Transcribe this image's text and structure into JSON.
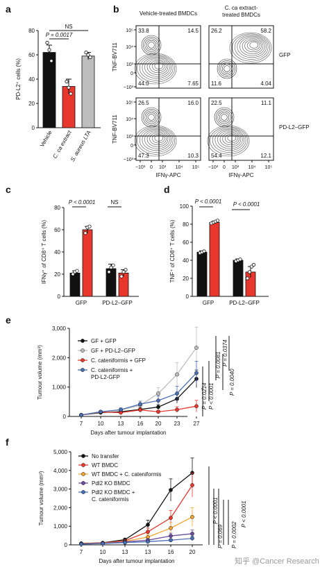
{
  "colors": {
    "black": "#111111",
    "red": "#e8372c",
    "grey": "#bdbdbd",
    "blue": "#4a6fb5",
    "orange": "#f2a431",
    "purple": "#6a4b9e",
    "dark": "#222222"
  },
  "watermark": "知乎 @Cancer Research",
  "chart_data": [
    {
      "panel": "a",
      "type": "bar",
      "ylabel": "PD-L2⁺ cells (%)",
      "ylim": [
        0,
        80
      ],
      "yticks": [
        "0",
        "20",
        "40",
        "60",
        "80"
      ],
      "categories": [
        "Vehicle",
        "C. ca extract",
        "S. aureus LTA"
      ],
      "values": [
        62,
        34,
        59
      ],
      "errors": [
        6,
        6,
        3
      ],
      "points": [
        [
          70,
          64,
          55
        ],
        [
          38,
          33,
          28
        ],
        [
          62,
          60,
          58
        ]
      ],
      "annotations": {
        "stat1": "P = 0.0017",
        "stat2": "NS"
      }
    },
    {
      "panel": "b",
      "type": "scatter",
      "col_titles": [
        "Vehicle-treated BMDCs",
        "C. ca extract-\ntreated BMDCs"
      ],
      "row_labels": [
        "GFP",
        "PD-L2–GFP"
      ],
      "xlabel": "IFNγ-APC",
      "ylabel": "TNF-BV711",
      "ticks": [
        "−10³",
        "0",
        "10³",
        "10⁴",
        "10⁵"
      ],
      "quadrants": [
        {
          "row": 0,
          "col": 0,
          "tl": "33.8",
          "tr": "14.5",
          "bl": "44.0",
          "br": "7.65"
        },
        {
          "row": 0,
          "col": 1,
          "tl": "26.2",
          "tr": "58.2",
          "bl": "11.6",
          "br": "4.04"
        },
        {
          "row": 1,
          "col": 0,
          "tl": "26.5",
          "tr": "16.0",
          "bl": "47.3",
          "br": "10.3"
        },
        {
          "row": 1,
          "col": 1,
          "tl": "22.5",
          "tr": "11.1",
          "bl": "54.4",
          "br": "12.1"
        }
      ]
    },
    {
      "panel": "c",
      "type": "bar",
      "ylabel": "IFNγ⁺ of CD8⁺ T cells (%)",
      "ylim": [
        0,
        80
      ],
      "yticks": [
        "0",
        "20",
        "40",
        "60",
        "80"
      ],
      "categories": [
        "GFP",
        "PD-L2–GFP"
      ],
      "series": [
        {
          "color": "black",
          "values": [
            21,
            25
          ],
          "errors": [
            2,
            4
          ],
          "points": [
            [
              20,
              22,
              23
            ],
            [
              22,
              26,
              28
            ]
          ]
        },
        {
          "color": "red",
          "values": [
            60,
            21
          ],
          "errors": [
            3,
            3
          ],
          "points": [
            [
              57,
              62,
              63
            ],
            [
              18,
              22,
              24
            ]
          ]
        }
      ],
      "annotations": {
        "stat1": "P < 0.0001",
        "stat2": "NS"
      }
    },
    {
      "panel": "d",
      "type": "bar",
      "ylabel": "TNF⁺ of CD8⁺ T cells (%)",
      "ylim": [
        0,
        100
      ],
      "yticks": [
        "0",
        "20",
        "40",
        "60",
        "80",
        "100"
      ],
      "categories": [
        "GFP",
        "PD-L2–GFP"
      ],
      "series": [
        {
          "color": "black",
          "values": [
            49,
            40
          ],
          "errors": [
            1.5,
            1.5
          ],
          "points": [
            [
              48,
              49,
              50
            ],
            [
              39,
              40,
              41
            ]
          ]
        },
        {
          "color": "red",
          "values": [
            82,
            27
          ],
          "errors": [
            1.5,
            6
          ],
          "points": [
            [
              81,
              82,
              83,
              84
            ],
            [
              20,
              27,
              33,
              35
            ]
          ]
        }
      ],
      "annotations": {
        "stat1": "P < 0.0001",
        "stat2": "P < 0.0001"
      }
    },
    {
      "panel": "e",
      "type": "line",
      "xlabel": "Days after tumour implantation",
      "ylabel": "Tumour volume (mm³)",
      "ylim": [
        0,
        3000
      ],
      "yticks": [
        "0",
        "1,000",
        "2,000",
        "3,000"
      ],
      "x": [
        7,
        10,
        13,
        16,
        20,
        23,
        27
      ],
      "series": [
        {
          "name": "GF + GFP",
          "color": "black",
          "marker": "circle",
          "values": [
            50,
            130,
            160,
            240,
            320,
            600,
            1280
          ],
          "errors": [
            20,
            30,
            30,
            50,
            80,
            150,
            300
          ]
        },
        {
          "name": "GF + PD-L2–GFP",
          "color": "grey",
          "marker": "circle",
          "values": [
            50,
            150,
            220,
            380,
            780,
            1430,
            2340
          ],
          "errors": [
            20,
            40,
            50,
            80,
            200,
            400,
            700
          ]
        },
        {
          "name": "C. cateniformis + GFP",
          "color": "red",
          "marker": "circle",
          "values": [
            50,
            150,
            130,
            220,
            160,
            230,
            350
          ],
          "errors": [
            20,
            40,
            40,
            60,
            50,
            100,
            200
          ]
        },
        {
          "name": "C. cateniformis +\nPD-L2-GFP",
          "color": "blue",
          "marker": "circle",
          "values": [
            50,
            160,
            230,
            420,
            540,
            780,
            1480
          ],
          "errors": [
            20,
            40,
            60,
            100,
            150,
            250,
            400
          ]
        }
      ],
      "pvalues": [
        "P = 0.0214",
        "P < 0.0001",
        "P = 0.0081",
        "P = 0.0040",
        "P = 0.0374"
      ]
    },
    {
      "panel": "f",
      "type": "line",
      "xlabel": "Days after tumour implantation",
      "ylabel": "Tumour volume (mm³)",
      "ylim": [
        0,
        5000
      ],
      "yticks": [
        "0",
        "1,000",
        "2,000",
        "3,000",
        "4,000",
        "5,000"
      ],
      "xticks": [
        "7",
        "10",
        "13",
        "13",
        "16",
        "20"
      ],
      "series": [
        {
          "name": "No transfer",
          "color": "black",
          "values": [
            80,
            110,
            280,
            1080,
            2950,
            3870
          ],
          "errors": [
            20,
            30,
            60,
            250,
            600,
            800
          ]
        },
        {
          "name": "WT BMDC",
          "color": "red",
          "values": [
            70,
            100,
            220,
            700,
            1450,
            3210
          ],
          "errors": [
            20,
            30,
            50,
            200,
            400,
            650
          ]
        },
        {
          "name": "WT BMDC + C. cateniformis",
          "color": "orange",
          "values": [
            60,
            90,
            180,
            420,
            900,
            1500
          ],
          "errors": [
            20,
            30,
            50,
            150,
            300,
            500
          ]
        },
        {
          "name": "Pdl2 KO BMDC",
          "color": "purple",
          "values": [
            50,
            80,
            160,
            250,
            480,
            600
          ],
          "errors": [
            20,
            25,
            40,
            80,
            150,
            200
          ]
        },
        {
          "name": "Pdl2 KO BMDC +\nC. cateniformis",
          "color": "blue",
          "values": [
            40,
            70,
            120,
            170,
            250,
            350
          ],
          "errors": [
            15,
            20,
            30,
            60,
            80,
            120
          ]
        }
      ],
      "pvalues": [
        "P < 0.0001",
        "P = 0.069",
        "P = 0.0002",
        "P < 0.0001"
      ]
    }
  ]
}
